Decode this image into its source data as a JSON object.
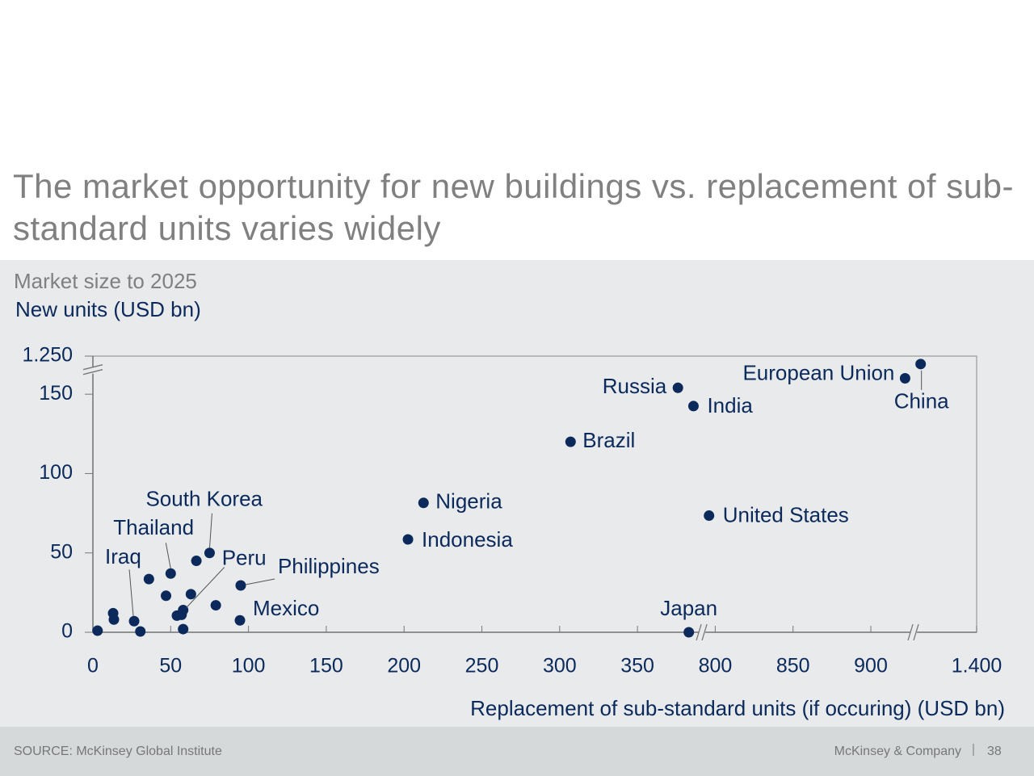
{
  "title": "The market opportunity for new buildings vs. replacement of sub-standard units varies widely",
  "chart_data": {
    "type": "scatter",
    "subtitle": "Market size to 2025",
    "y_label": "New units (USD bn)",
    "x_label": "Replacement of sub-standard units (if occuring) (USD bn)",
    "xlim": [
      0,
      1400
    ],
    "ylim": [
      0,
      1250
    ],
    "xbreaks": [
      [
        391,
        791
      ],
      [
        927,
        1359
      ]
    ],
    "ybreaks": [
      [
        165,
        1241
      ]
    ],
    "xticks": [
      0,
      50,
      100,
      150,
      200,
      250,
      300,
      350,
      800,
      850,
      900,
      {
        "value": 1400,
        "label": "1.400"
      }
    ],
    "yticks": [
      0,
      50,
      100,
      150,
      {
        "value": 1250,
        "label": "1.250"
      }
    ],
    "series": [
      {
        "color": "#0b2a5b",
        "x": [
          3,
          13,
          13.5,
          26.5,
          30.5,
          36,
          47,
          50,
          54,
          57,
          58,
          58,
          63,
          66.5,
          75,
          79,
          95,
          94.5,
          212.5,
          202.5,
          307,
          376,
          386,
          796,
          383,
          922,
          1364
        ],
        "y": [
          1,
          12,
          8,
          7,
          0.5,
          33.5,
          23,
          37,
          10.5,
          11,
          14,
          2,
          24,
          45,
          50,
          17,
          29.5,
          7.5,
          81.5,
          58.5,
          120,
          154,
          142.5,
          73.5,
          0,
          160,
          1245
        ],
        "labels": [
          null,
          null,
          null,
          "Iraq",
          null,
          null,
          null,
          "Thailand",
          null,
          null,
          "Peru",
          null,
          null,
          null,
          "South Korea",
          null,
          "Philippines",
          "Mexico",
          "Nigeria",
          "Indonesia",
          "Brazil",
          "Russia",
          "India",
          "United States",
          "Japan",
          "European Union",
          "China"
        ]
      }
    ]
  },
  "footer": {
    "source": "SOURCE: McKinsey Global Institute",
    "company": "McKinsey & Company",
    "page": "38"
  }
}
